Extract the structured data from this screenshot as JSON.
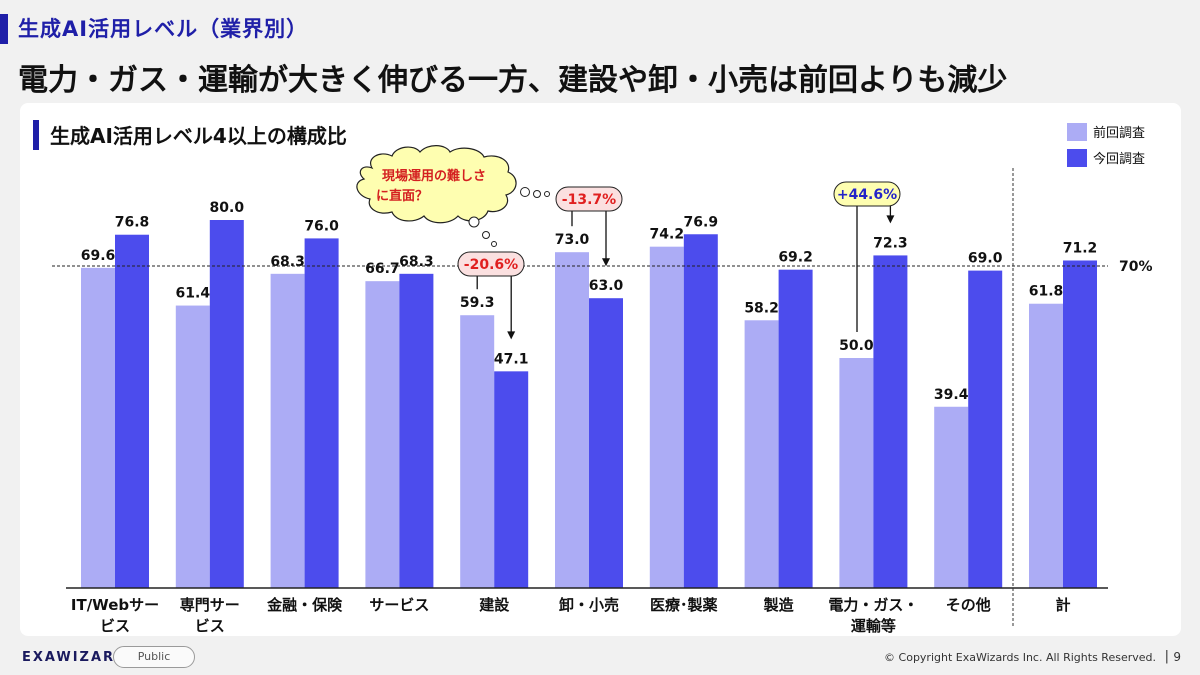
{
  "slide": {
    "section_title": "生成AI活用レベル（業界別）",
    "headline": "電力・ガス・運輸が大きく伸びる一方、建設や卸・小売は前回よりも減少"
  },
  "footer": {
    "logo": "EXAWIZARDS",
    "badge": "Public",
    "copyright": "© Copyright ExaWizards Inc. All Rights Reserved.",
    "separator": "|",
    "page_number": "9"
  },
  "colors": {
    "previous": "#acacf5",
    "current": "#4c4ced",
    "accent": "#1f1fa8",
    "callout_fill": "#fbe0e0",
    "callout_red": "#e02020",
    "callout_blue": "#2323c8",
    "thought_fill": "#fefeb0"
  },
  "chart_data": {
    "type": "bar",
    "title": "生成AI活用レベル4以上の構成比",
    "categories": [
      [
        "IT/Webサー",
        "ビス"
      ],
      [
        "専門サー",
        "ビス"
      ],
      [
        "金融・保険"
      ],
      [
        "サービス"
      ],
      [
        "建設"
      ],
      [
        "卸・小売"
      ],
      [
        "医療･製薬"
      ],
      [
        "製造"
      ],
      [
        "電力・ガス・",
        "運輸等"
      ],
      [
        "その他"
      ],
      [
        "計"
      ]
    ],
    "series": [
      {
        "name": "前回調査",
        "values": [
          69.6,
          61.4,
          68.3,
          66.7,
          59.3,
          73.0,
          74.2,
          58.2,
          50.0,
          39.4,
          61.8
        ]
      },
      {
        "name": "今回調査",
        "values": [
          76.8,
          80.0,
          76.0,
          68.3,
          47.1,
          63.0,
          76.9,
          69.2,
          72.3,
          69.0,
          71.2
        ]
      }
    ],
    "ylim": [
      0,
      100
    ],
    "reference_line": {
      "value": 70,
      "label": "70%"
    },
    "legend_position": "top-right",
    "grid": false,
    "annotations": [
      {
        "category_index": 4,
        "text": "-20.6%",
        "style": "decrease"
      },
      {
        "category_index": 5,
        "text": "-13.7%",
        "style": "decrease"
      },
      {
        "category_index": 8,
        "text": "+44.6%",
        "style": "increase"
      }
    ],
    "thought_bubble": [
      "現場運用の難しさ",
      "に直面？"
    ]
  }
}
